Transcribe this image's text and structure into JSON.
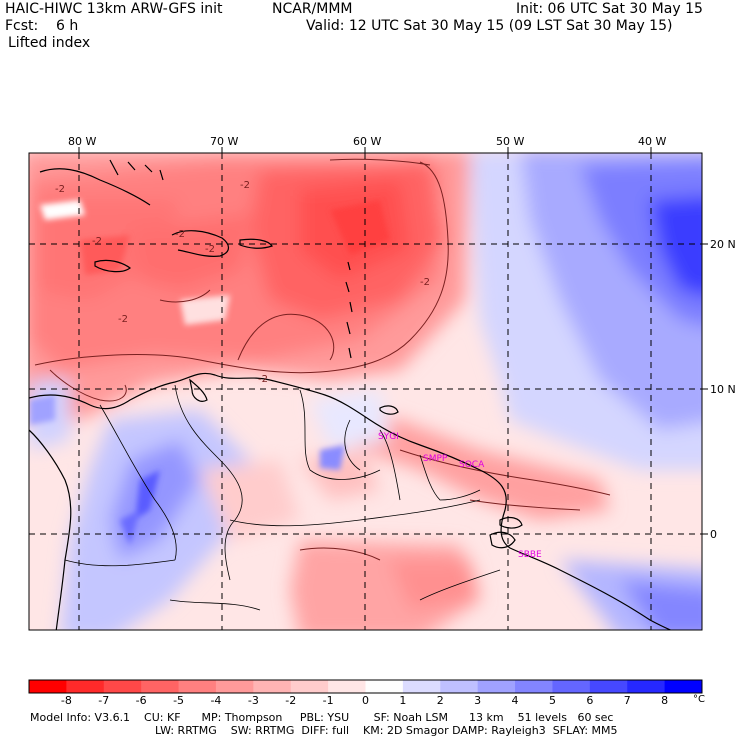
{
  "header": {
    "title": "HAIC-HIWC 13km ARW-GFS init",
    "org": "NCAR/MMM",
    "init": "Init: 06 UTC Sat 30 May 15",
    "fcst": "Fcst:    6 h",
    "valid": "Valid: 12 UTC Sat 30 May 15 (09 LST Sat 30 May 15)",
    "field": "Lifted index"
  },
  "map": {
    "lon_labels": [
      "80 W",
      "70 W",
      "60 W",
      "50 W",
      "40 W"
    ],
    "lat_labels": [
      "20 N",
      "10 N",
      "0"
    ],
    "contour_labels": [
      "-2",
      "-2",
      "-2",
      "-2",
      "-2",
      "-2",
      "-2",
      "-2"
    ],
    "station_labels": [
      "SYGI",
      "SMPP",
      "SOCA",
      "SBBE"
    ],
    "colors": {
      "coast": "#000000",
      "contour": "#7a2020",
      "grid": "#000000",
      "station": "#e000e0"
    }
  },
  "colorbar": {
    "labels": [
      "-8",
      "-7",
      "-6",
      "-5",
      "-4",
      "-3",
      "-2",
      "-1",
      "0",
      "1",
      "2",
      "3",
      "4",
      "5",
      "6",
      "7",
      "8"
    ],
    "unit": "°C",
    "colors": [
      "#ff0000",
      "#ff2a2a",
      "#ff4848",
      "#ff6464",
      "#ff8080",
      "#ff9a9a",
      "#ffb4b4",
      "#ffcccc",
      "#ffe6e6",
      "#fefefe",
      "#dcdcff",
      "#bfc0ff",
      "#a0a2ff",
      "#8385ff",
      "#6466ff",
      "#4648ff",
      "#2628ff",
      "#0000ff"
    ]
  },
  "model_info": {
    "line1": "Model Info: V3.6.1    CU: KF      MP: Thompson     PBL: YSU       SF: Noah LSM      13 km    51 levels   60 sec",
    "line2": "LW: RRTMG    SW: RRTMG  DIFF: full    KM: 2D Smagor DAMP: Rayleigh3  SFLAY: MM5"
  }
}
